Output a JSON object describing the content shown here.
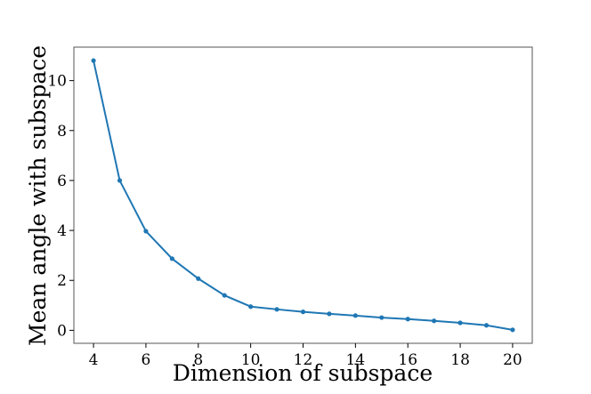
{
  "chart_data": {
    "type": "line",
    "title": "",
    "xlabel": "Dimension of subspace",
    "ylabel": "Mean angle with subspace",
    "x": [
      4,
      5,
      6,
      7,
      8,
      9,
      10,
      11,
      12,
      13,
      14,
      15,
      16,
      17,
      18,
      19,
      20
    ],
    "series": [
      {
        "values": [
          10.8,
          6.0,
          3.97,
          2.87,
          2.07,
          1.4,
          0.95,
          0.84,
          0.74,
          0.66,
          0.59,
          0.51,
          0.45,
          0.38,
          0.3,
          0.2,
          0.02
        ],
        "color": "#1f77b4"
      }
    ],
    "xticks": [
      4,
      6,
      8,
      10,
      12,
      14,
      16,
      18,
      20
    ],
    "yticks": [
      0,
      2,
      4,
      6,
      8,
      10
    ],
    "xlim": [
      3.25,
      20.75
    ],
    "ylim": [
      -0.52,
      11.34
    ],
    "grid": false,
    "legend": "none"
  }
}
